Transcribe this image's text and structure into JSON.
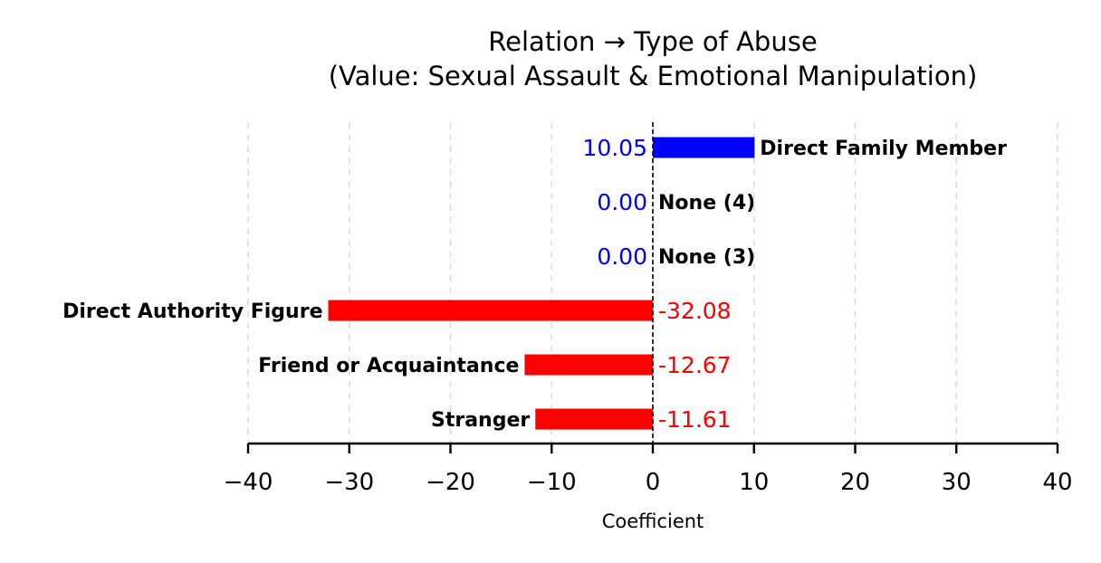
{
  "chart_data": {
    "type": "bar",
    "orientation": "horizontal",
    "title": "Relation → Type of Abuse",
    "subtitle": "(Value: Sexual Assault & Emotional Manipulation)",
    "xlabel": "Coefficient",
    "ylabel": "",
    "xlim": [
      -40,
      40
    ],
    "x_ticks": [
      -40,
      -30,
      -20,
      -10,
      0,
      10,
      20,
      30,
      40
    ],
    "x_tick_labels": [
      "−40",
      "−30",
      "−20",
      "−10",
      "0",
      "10",
      "20",
      "30",
      "40"
    ],
    "grid": "vertical dashed",
    "categories": [
      "Direct Family Member",
      "None (4)",
      "None (3)",
      "Direct Authority Figure",
      "Friend or Acquaintance",
      "Stranger"
    ],
    "values": [
      10.05,
      0.0,
      0.0,
      -32.08,
      -12.67,
      -11.61
    ],
    "value_labels": [
      "10.05",
      "0.00",
      "0.00",
      "-32.08",
      "-12.67",
      "-11.61"
    ],
    "colors": {
      "positive": "#0000ff",
      "negative": "#ff0000",
      "label_text": "#000000",
      "grid": "#dddddd"
    }
  }
}
